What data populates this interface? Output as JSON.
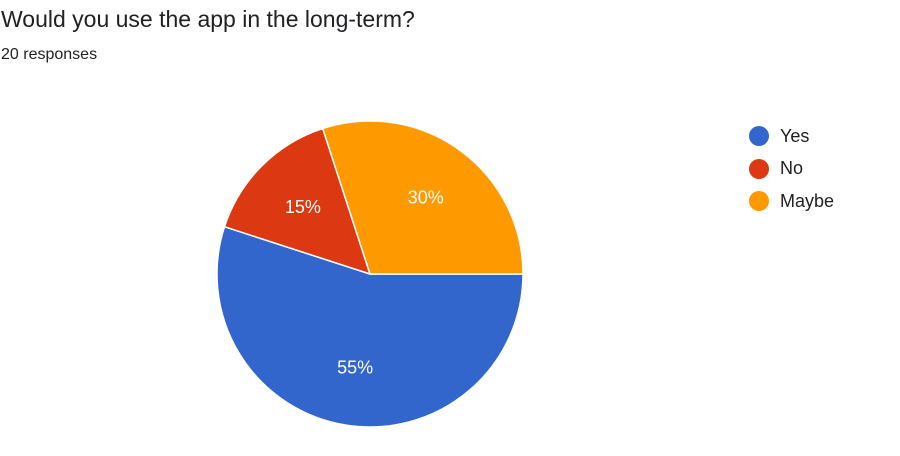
{
  "header": {
    "title": "Would you use the app in the long-term?",
    "subtitle": "20 responses"
  },
  "chart_data": {
    "type": "pie",
    "title": "Would you use the app in the long-term?",
    "subtitle": "20 responses",
    "categories": [
      "Yes",
      "No",
      "Maybe"
    ],
    "values": [
      55,
      15,
      30
    ],
    "value_labels": [
      "55%",
      "15%",
      "30%"
    ],
    "unit": "%",
    "colors": [
      "#3366cc",
      "#dc3912",
      "#ff9900"
    ],
    "legend_position": "right"
  }
}
